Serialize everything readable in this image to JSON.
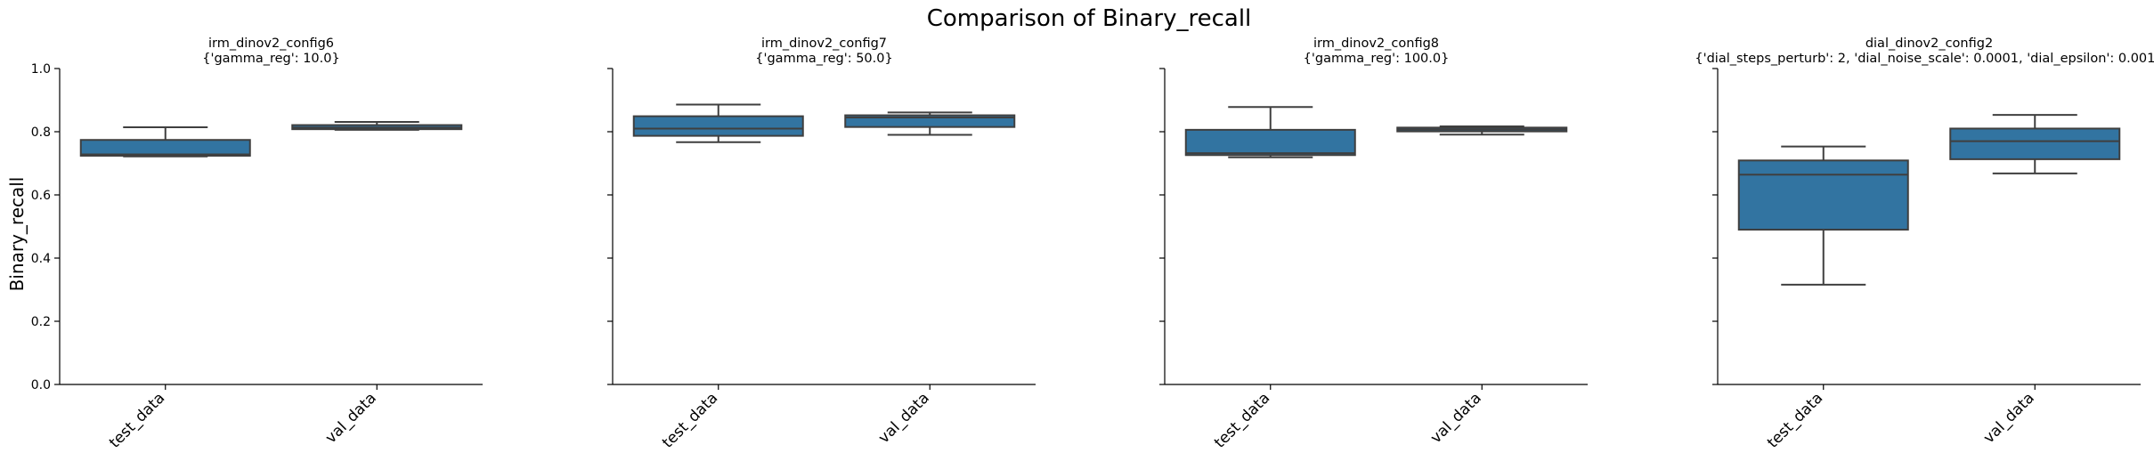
{
  "chart_data": {
    "type": "box",
    "title": "Comparison of Binary_recall",
    "ylabel": "Binary_recall",
    "ylim": [
      0.0,
      1.0
    ],
    "yticks": [
      "0.0",
      "0.2",
      "0.4",
      "0.6",
      "0.8",
      "1.0"
    ],
    "box_color": "#3274a1",
    "panels": [
      {
        "title": "irm_dinov2_config6",
        "subtitle": "{'gamma_reg': 10.0}",
        "categories": [
          "test_data",
          "val_data"
        ],
        "boxes": [
          {
            "whisker_low": 0.722,
            "q1": 0.724,
            "median": 0.728,
            "q3": 0.774,
            "whisker_high": 0.814
          },
          {
            "whisker_low": 0.806,
            "q1": 0.808,
            "median": 0.813,
            "q3": 0.821,
            "whisker_high": 0.831
          }
        ]
      },
      {
        "title": "irm_dinov2_config7",
        "subtitle": "{'gamma_reg': 50.0}",
        "categories": [
          "test_data",
          "val_data"
        ],
        "boxes": [
          {
            "whisker_low": 0.767,
            "q1": 0.787,
            "median": 0.81,
            "q3": 0.849,
            "whisker_high": 0.886
          },
          {
            "whisker_low": 0.79,
            "q1": 0.815,
            "median": 0.845,
            "q3": 0.852,
            "whisker_high": 0.861
          }
        ]
      },
      {
        "title": "irm_dinov2_config8",
        "subtitle": "{'gamma_reg': 100.0}",
        "categories": [
          "test_data",
          "val_data"
        ],
        "boxes": [
          {
            "whisker_low": 0.719,
            "q1": 0.726,
            "median": 0.732,
            "q3": 0.806,
            "whisker_high": 0.878
          },
          {
            "whisker_low": 0.791,
            "q1": 0.801,
            "median": 0.807,
            "q3": 0.813,
            "whisker_high": 0.817
          }
        ]
      },
      {
        "title": "dial_dinov2_config2",
        "subtitle": "{'dial_steps_perturb': 2, 'dial_noise_scale': 0.0001, 'dial_epsilon': 0.001}",
        "categories": [
          "test_data",
          "val_data"
        ],
        "boxes": [
          {
            "whisker_low": 0.316,
            "q1": 0.49,
            "median": 0.664,
            "q3": 0.709,
            "whisker_high": 0.753
          },
          {
            "whisker_low": 0.668,
            "q1": 0.713,
            "median": 0.77,
            "q3": 0.81,
            "whisker_high": 0.853
          }
        ]
      }
    ]
  }
}
